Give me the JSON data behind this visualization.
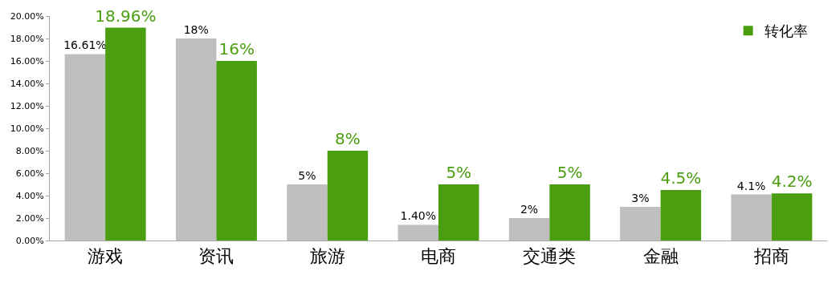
{
  "chart_data": {
    "type": "bar",
    "categories": [
      "游戏",
      "资讯",
      "旅游",
      "电商",
      "交通类",
      "金融",
      "招商"
    ],
    "series": [
      {
        "color": "#bfbfbf",
        "values": [
          16.61,
          18,
          5,
          1.4,
          2,
          3,
          4.1
        ],
        "value_labels": [
          "16.61%",
          "18%",
          "5%",
          "1.40%",
          "2%",
          "3%",
          "4.1%"
        ]
      },
      {
        "name": "转化率",
        "color": "#4a9e10",
        "values": [
          18.96,
          16,
          8,
          5,
          5,
          4.5,
          4.2
        ],
        "value_labels": [
          "18.96%",
          "16%",
          "8%",
          "5%",
          "5%",
          "4.5%",
          "4.2%"
        ]
      }
    ],
    "ylim": [
      0,
      20
    ],
    "yticks": [
      {
        "value": 0,
        "label": "0.00%"
      },
      {
        "value": 2,
        "label": "2.00%"
      },
      {
        "value": 4,
        "label": "4.00%"
      },
      {
        "value": 6,
        "label": "6.00%"
      },
      {
        "value": 8,
        "label": "8.00%"
      },
      {
        "value": 10,
        "label": "10.00%"
      },
      {
        "value": 12,
        "label": "12.00%"
      },
      {
        "value": 14,
        "label": "14.00%"
      },
      {
        "value": 16,
        "label": "16.00%"
      },
      {
        "value": 18,
        "label": "18.00%"
      },
      {
        "value": 20,
        "label": "20.00%"
      }
    ],
    "legend": "top right"
  }
}
